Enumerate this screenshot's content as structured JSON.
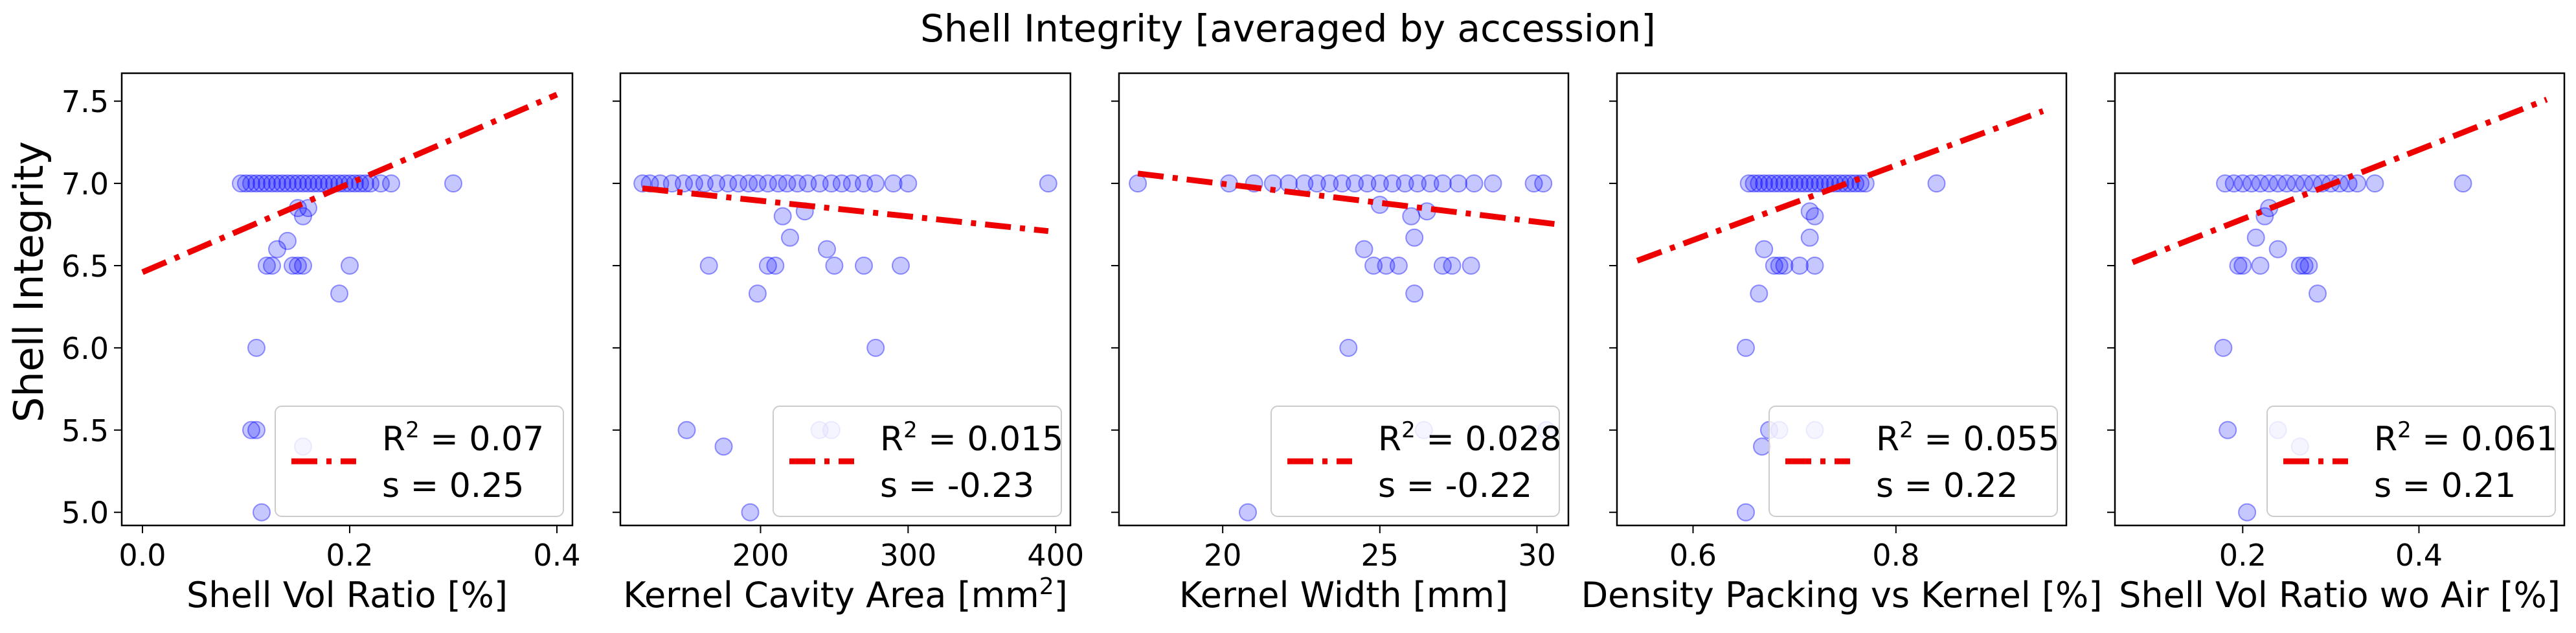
{
  "title": "Shell Integrity [averaged by accession]",
  "colors": {
    "points": "#0000ff",
    "fit": "#ee0000",
    "axes": "#000000",
    "legend_border": "#cccccc"
  },
  "chart_data": [
    {
      "type": "scatter",
      "xlabel": "Shell Vol Ratio [%]",
      "ylabel": "Shell Integrity",
      "xlim": [
        -0.02,
        0.415
      ],
      "ylim": [
        4.92,
        7.67
      ],
      "xticks": [
        0.0,
        0.2,
        0.4
      ],
      "xtick_labels": [
        "0.0",
        "0.2",
        "0.4"
      ],
      "yticks": [
        5.0,
        5.5,
        6.0,
        6.5,
        7.0,
        7.5
      ],
      "ytick_labels": [
        "5.0",
        "5.5",
        "6.0",
        "6.5",
        "7.0",
        "7.5"
      ],
      "legend": {
        "r2": "0.07",
        "s": "0.25",
        "placement": "lower-right"
      },
      "fit": {
        "x": [
          0.0,
          0.4
        ],
        "y": [
          6.46,
          7.54
        ]
      },
      "points": [
        [
          0.095,
          7.0
        ],
        [
          0.1,
          7.0
        ],
        [
          0.105,
          7.0
        ],
        [
          0.11,
          7.0
        ],
        [
          0.115,
          7.0
        ],
        [
          0.12,
          7.0
        ],
        [
          0.125,
          7.0
        ],
        [
          0.13,
          7.0
        ],
        [
          0.135,
          7.0
        ],
        [
          0.14,
          7.0
        ],
        [
          0.145,
          7.0
        ],
        [
          0.15,
          7.0
        ],
        [
          0.155,
          7.0
        ],
        [
          0.16,
          7.0
        ],
        [
          0.165,
          7.0
        ],
        [
          0.17,
          7.0
        ],
        [
          0.175,
          7.0
        ],
        [
          0.18,
          7.0
        ],
        [
          0.185,
          7.0
        ],
        [
          0.19,
          7.0
        ],
        [
          0.195,
          7.0
        ],
        [
          0.2,
          7.0
        ],
        [
          0.205,
          7.0
        ],
        [
          0.21,
          7.0
        ],
        [
          0.215,
          7.0
        ],
        [
          0.22,
          7.0
        ],
        [
          0.23,
          7.0
        ],
        [
          0.24,
          7.0
        ],
        [
          0.3,
          7.0
        ],
        [
          0.15,
          6.85
        ],
        [
          0.155,
          6.8
        ],
        [
          0.16,
          6.85
        ],
        [
          0.13,
          6.6
        ],
        [
          0.14,
          6.65
        ],
        [
          0.12,
          6.5
        ],
        [
          0.125,
          6.5
        ],
        [
          0.145,
          6.5
        ],
        [
          0.15,
          6.5
        ],
        [
          0.155,
          6.5
        ],
        [
          0.2,
          6.5
        ],
        [
          0.19,
          6.33
        ],
        [
          0.11,
          6.0
        ],
        [
          0.105,
          5.5
        ],
        [
          0.11,
          5.5
        ],
        [
          0.155,
          5.4
        ],
        [
          0.115,
          5.0
        ]
      ]
    },
    {
      "type": "scatter",
      "xlabel": "Kernel Cavity Area [mm²]",
      "xlabel_base": "Kernel Cavity Area [mm",
      "xlabel_sup": "2",
      "xlabel_end": "]",
      "xlim": [
        105,
        410
      ],
      "ylim": [
        4.92,
        7.67
      ],
      "xticks": [
        200,
        300,
        400
      ],
      "xtick_labels": [
        "200",
        "300",
        "400"
      ],
      "legend": {
        "r2": "0.015",
        "s": "-0.23",
        "placement": "lower-right"
      },
      "fit": {
        "x": [
          120,
          395
        ],
        "y": [
          6.97,
          6.71
        ]
      },
      "points": [
        [
          120,
          7.0
        ],
        [
          125,
          7.0
        ],
        [
          132,
          7.0
        ],
        [
          140,
          7.0
        ],
        [
          148,
          7.0
        ],
        [
          155,
          7.0
        ],
        [
          162,
          7.0
        ],
        [
          170,
          7.0
        ],
        [
          178,
          7.0
        ],
        [
          185,
          7.0
        ],
        [
          192,
          7.0
        ],
        [
          198,
          7.0
        ],
        [
          205,
          7.0
        ],
        [
          212,
          7.0
        ],
        [
          218,
          7.0
        ],
        [
          225,
          7.0
        ],
        [
          232,
          7.0
        ],
        [
          240,
          7.0
        ],
        [
          248,
          7.0
        ],
        [
          255,
          7.0
        ],
        [
          262,
          7.0
        ],
        [
          270,
          7.0
        ],
        [
          278,
          7.0
        ],
        [
          290,
          7.0
        ],
        [
          300,
          7.0
        ],
        [
          395,
          7.0
        ],
        [
          215,
          6.8
        ],
        [
          230,
          6.83
        ],
        [
          220,
          6.67
        ],
        [
          245,
          6.6
        ],
        [
          165,
          6.5
        ],
        [
          205,
          6.5
        ],
        [
          210,
          6.5
        ],
        [
          250,
          6.5
        ],
        [
          270,
          6.5
        ],
        [
          295,
          6.5
        ],
        [
          198,
          6.33
        ],
        [
          278,
          6.0
        ],
        [
          150,
          5.5
        ],
        [
          240,
          5.5
        ],
        [
          248,
          5.5
        ],
        [
          175,
          5.4
        ],
        [
          193,
          5.0
        ]
      ]
    },
    {
      "type": "scatter",
      "xlabel": "Kernel Width [mm]",
      "xlim": [
        16.7,
        31.0
      ],
      "ylim": [
        4.92,
        7.67
      ],
      "xticks": [
        20,
        25,
        30
      ],
      "xtick_labels": [
        "20",
        "25",
        "30"
      ],
      "legend": {
        "r2": "0.028",
        "s": "-0.22",
        "placement": "lower-right"
      },
      "fit": {
        "x": [
          17.3,
          30.7
        ],
        "y": [
          7.06,
          6.75
        ]
      },
      "points": [
        [
          17.3,
          7.0
        ],
        [
          20.2,
          7.0
        ],
        [
          21.0,
          7.0
        ],
        [
          21.6,
          7.0
        ],
        [
          22.1,
          7.0
        ],
        [
          22.6,
          7.0
        ],
        [
          23.0,
          7.0
        ],
        [
          23.4,
          7.0
        ],
        [
          23.8,
          7.0
        ],
        [
          24.2,
          7.0
        ],
        [
          24.6,
          7.0
        ],
        [
          25.0,
          7.0
        ],
        [
          25.4,
          7.0
        ],
        [
          25.8,
          7.0
        ],
        [
          26.2,
          7.0
        ],
        [
          26.6,
          7.0
        ],
        [
          27.0,
          7.0
        ],
        [
          27.5,
          7.0
        ],
        [
          28.0,
          7.0
        ],
        [
          28.6,
          7.0
        ],
        [
          29.9,
          7.0
        ],
        [
          30.2,
          7.0
        ],
        [
          25.0,
          6.87
        ],
        [
          26.0,
          6.8
        ],
        [
          26.5,
          6.83
        ],
        [
          26.1,
          6.67
        ],
        [
          24.5,
          6.6
        ],
        [
          24.8,
          6.5
        ],
        [
          25.2,
          6.5
        ],
        [
          25.6,
          6.5
        ],
        [
          27.0,
          6.5
        ],
        [
          27.3,
          6.5
        ],
        [
          27.9,
          6.5
        ],
        [
          26.1,
          6.33
        ],
        [
          24.0,
          6.0
        ],
        [
          26.4,
          5.5
        ],
        [
          30.3,
          5.5
        ],
        [
          20.8,
          5.0
        ]
      ]
    },
    {
      "type": "scatter",
      "xlabel": "Density Packing vs Kernel [%]",
      "xlim": [
        0.525,
        0.968
      ],
      "ylim": [
        4.92,
        7.67
      ],
      "xticks": [
        0.6,
        0.8
      ],
      "xtick_labels": [
        "0.6",
        "0.8"
      ],
      "legend": {
        "r2": "0.055",
        "s": "0.22",
        "placement": "lower-right"
      },
      "fit": {
        "x": [
          0.545,
          0.945
        ],
        "y": [
          6.53,
          7.44
        ]
      },
      "points": [
        [
          0.655,
          7.0
        ],
        [
          0.66,
          7.0
        ],
        [
          0.665,
          7.0
        ],
        [
          0.67,
          7.0
        ],
        [
          0.675,
          7.0
        ],
        [
          0.68,
          7.0
        ],
        [
          0.685,
          7.0
        ],
        [
          0.69,
          7.0
        ],
        [
          0.695,
          7.0
        ],
        [
          0.7,
          7.0
        ],
        [
          0.705,
          7.0
        ],
        [
          0.71,
          7.0
        ],
        [
          0.715,
          7.0
        ],
        [
          0.72,
          7.0
        ],
        [
          0.725,
          7.0
        ],
        [
          0.73,
          7.0
        ],
        [
          0.735,
          7.0
        ],
        [
          0.74,
          7.0
        ],
        [
          0.745,
          7.0
        ],
        [
          0.75,
          7.0
        ],
        [
          0.755,
          7.0
        ],
        [
          0.76,
          7.0
        ],
        [
          0.765,
          7.0
        ],
        [
          0.77,
          7.0
        ],
        [
          0.84,
          7.0
        ],
        [
          0.715,
          6.83
        ],
        [
          0.72,
          6.8
        ],
        [
          0.67,
          6.6
        ],
        [
          0.715,
          6.67
        ],
        [
          0.68,
          6.5
        ],
        [
          0.685,
          6.5
        ],
        [
          0.69,
          6.5
        ],
        [
          0.705,
          6.5
        ],
        [
          0.72,
          6.5
        ],
        [
          0.665,
          6.33
        ],
        [
          0.652,
          6.0
        ],
        [
          0.675,
          5.5
        ],
        [
          0.685,
          5.5
        ],
        [
          0.72,
          5.5
        ],
        [
          0.668,
          5.4
        ],
        [
          0.652,
          5.0
        ]
      ]
    },
    {
      "type": "scatter",
      "xlabel": "Shell Vol Ratio wo Air [%]",
      "xlim": [
        0.055,
        0.565
      ],
      "ylim": [
        4.92,
        7.67
      ],
      "xticks": [
        0.2,
        0.4
      ],
      "xtick_labels": [
        "0.2",
        "0.4"
      ],
      "legend": {
        "r2": "0.061",
        "s": "0.21",
        "placement": "lower-right"
      },
      "fit": {
        "x": [
          0.075,
          0.545
        ],
        "y": [
          6.52,
          7.51
        ]
      },
      "points": [
        [
          0.18,
          7.0
        ],
        [
          0.19,
          7.0
        ],
        [
          0.2,
          7.0
        ],
        [
          0.21,
          7.0
        ],
        [
          0.22,
          7.0
        ],
        [
          0.23,
          7.0
        ],
        [
          0.24,
          7.0
        ],
        [
          0.25,
          7.0
        ],
        [
          0.26,
          7.0
        ],
        [
          0.27,
          7.0
        ],
        [
          0.28,
          7.0
        ],
        [
          0.29,
          7.0
        ],
        [
          0.3,
          7.0
        ],
        [
          0.31,
          7.0
        ],
        [
          0.32,
          7.0
        ],
        [
          0.33,
          7.0
        ],
        [
          0.35,
          7.0
        ],
        [
          0.45,
          7.0
        ],
        [
          0.23,
          6.85
        ],
        [
          0.225,
          6.8
        ],
        [
          0.215,
          6.67
        ],
        [
          0.24,
          6.6
        ],
        [
          0.195,
          6.5
        ],
        [
          0.2,
          6.5
        ],
        [
          0.22,
          6.5
        ],
        [
          0.265,
          6.5
        ],
        [
          0.27,
          6.5
        ],
        [
          0.275,
          6.5
        ],
        [
          0.285,
          6.33
        ],
        [
          0.178,
          6.0
        ],
        [
          0.183,
          5.5
        ],
        [
          0.24,
          5.5
        ],
        [
          0.265,
          5.4
        ],
        [
          0.205,
          5.0
        ]
      ]
    }
  ]
}
